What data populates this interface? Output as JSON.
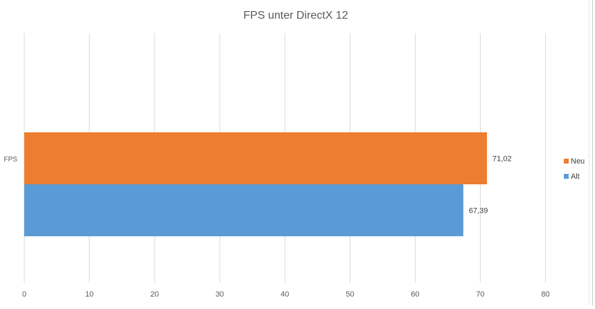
{
  "chart_data": {
    "type": "bar",
    "orientation": "horizontal",
    "title": "FPS unter DirectX 12",
    "categories": [
      "FPS"
    ],
    "series": [
      {
        "name": "Neu",
        "values": [
          71.02
        ],
        "value_labels": [
          "71,02"
        ],
        "color": "#ED7D31"
      },
      {
        "name": "Alt",
        "values": [
          67.39
        ],
        "value_labels": [
          "67,39"
        ],
        "color": "#5B9BD5"
      }
    ],
    "x_ticks": [
      "0",
      "10",
      "20",
      "30",
      "40",
      "50",
      "60",
      "70",
      "80"
    ],
    "xlim": [
      0,
      80
    ],
    "grid": "vertical",
    "legend_position": "right",
    "xlabel": "",
    "ylabel": ""
  }
}
